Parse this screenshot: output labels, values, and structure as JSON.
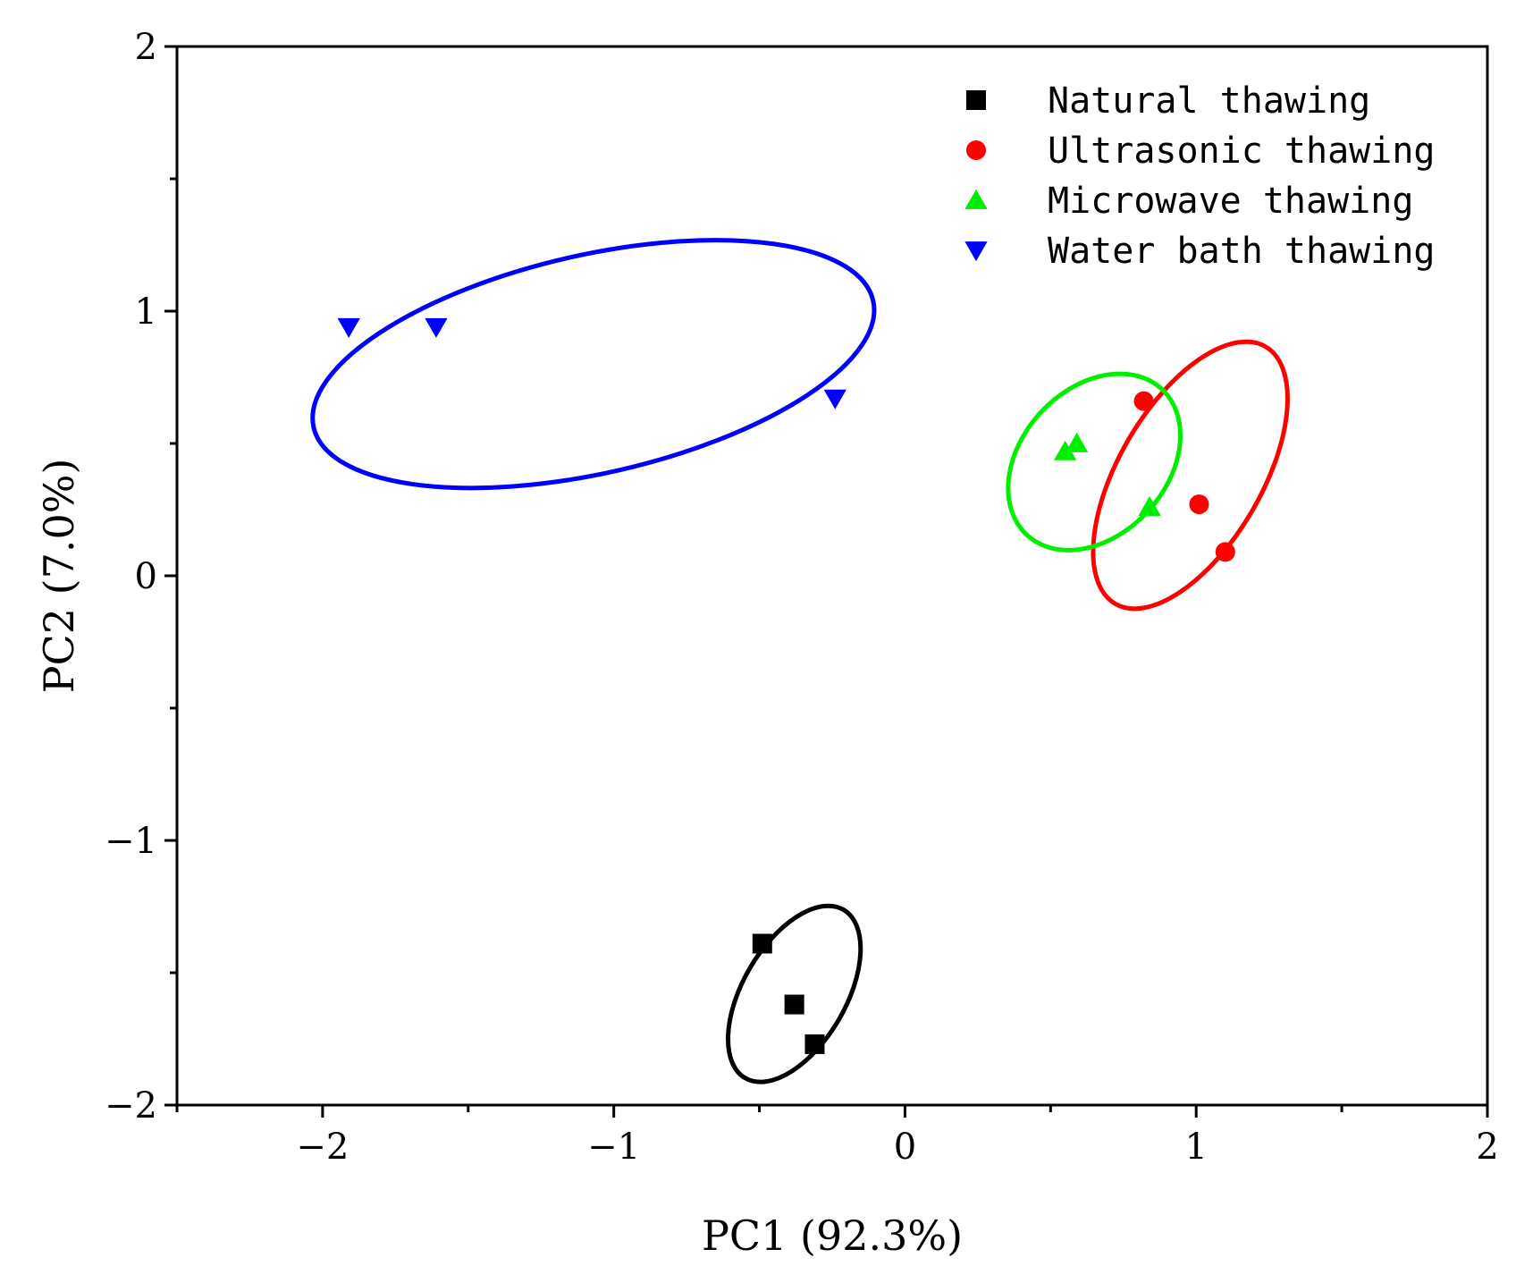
{
  "chart_data": {
    "type": "scatter",
    "title": "",
    "xlabel": "PC1 (92.3%)",
    "ylabel": "PC2 (7.0%)",
    "xlim": [
      -2.5,
      2
    ],
    "ylim": [
      -2,
      2
    ],
    "xticks": [
      -2,
      -1,
      0,
      1,
      2
    ],
    "xtick_labels": [
      "−2",
      "−1",
      "0",
      "1",
      "2"
    ],
    "yticks": [
      -2,
      -1,
      0,
      1,
      2
    ],
    "ytick_labels": [
      "−2",
      "−1",
      "0",
      "1",
      "2"
    ],
    "grid": false,
    "legend_position": "top-right",
    "series": [
      {
        "name": "Natural thawing",
        "color": "#000000",
        "marker": "square",
        "points": [
          [
            -0.49,
            -1.39
          ],
          [
            -0.38,
            -1.62
          ],
          [
            -0.31,
            -1.77
          ]
        ],
        "ellipse": {
          "cx": -0.38,
          "cy": -1.58,
          "rx": 0.36,
          "ry": 0.18,
          "angle_deg": 62
        }
      },
      {
        "name": "Ultrasonic thawing",
        "color": "#ff0000",
        "marker": "circle",
        "points": [
          [
            0.82,
            0.66
          ],
          [
            1.01,
            0.27
          ],
          [
            1.1,
            0.09
          ]
        ],
        "ellipse": {
          "cx": 0.98,
          "cy": 0.38,
          "rx": 0.55,
          "ry": 0.25,
          "angle_deg": 62
        }
      },
      {
        "name": "Microwave thawing",
        "color": "#00ee00",
        "marker": "triangle-up",
        "points": [
          [
            0.55,
            0.47
          ],
          [
            0.59,
            0.5
          ],
          [
            0.84,
            0.26
          ]
        ],
        "ellipse": {
          "cx": 0.65,
          "cy": 0.43,
          "rx": 0.36,
          "ry": 0.26,
          "angle_deg": 50
        }
      },
      {
        "name": "Water bath thawing",
        "color": "#0000ff",
        "marker": "triangle-down",
        "points": [
          [
            -1.91,
            0.94
          ],
          [
            -1.61,
            0.94
          ],
          [
            -0.24,
            0.67
          ]
        ],
        "ellipse": {
          "cx": -1.07,
          "cy": 0.8,
          "rx": 0.99,
          "ry": 0.41,
          "angle_deg": 14
        }
      }
    ]
  }
}
